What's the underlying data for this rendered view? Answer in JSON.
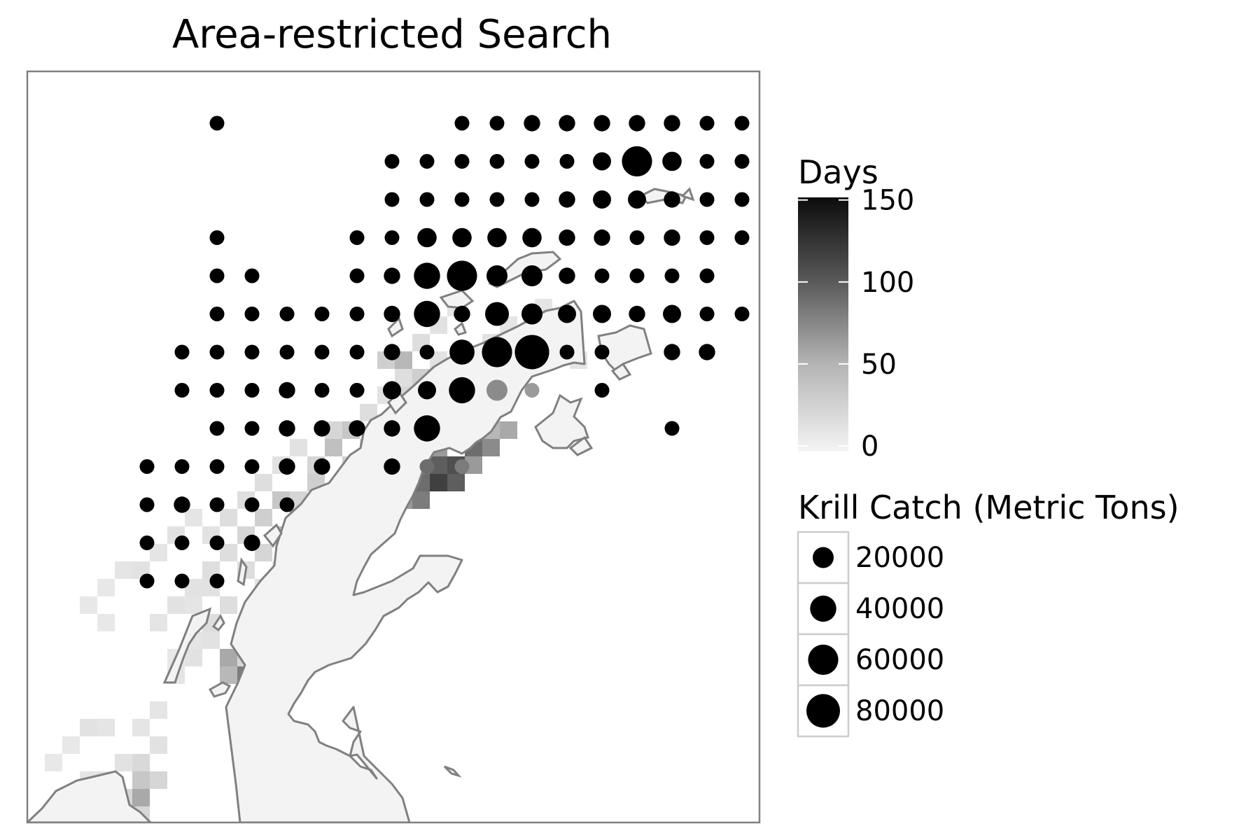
{
  "title": "Area-restricted Search",
  "legend_days": {
    "title": "Days",
    "ticks": [
      {
        "value": 0,
        "label": "0"
      },
      {
        "value": 50,
        "label": "50"
      },
      {
        "value": 100,
        "label": "100"
      },
      {
        "value": 150,
        "label": "150"
      }
    ],
    "range": [
      0,
      155
    ],
    "colors": {
      "low": "#f4f4f4",
      "high": "#0c0c0c"
    }
  },
  "legend_catch": {
    "title": "Krill Catch (Metric Tons)",
    "entries": [
      {
        "value": 20000,
        "label": "20000"
      },
      {
        "value": 40000,
        "label": "40000"
      },
      {
        "value": 60000,
        "label": "60000"
      },
      {
        "value": 80000,
        "label": "80000"
      }
    ]
  },
  "colors": {
    "land_fill": "#f3f3f3",
    "coastline": "#808080",
    "panel_border": "#808080",
    "points": "#000000",
    "legend_key_border": "#cccccc"
  },
  "chart_data": {
    "type": "scatter",
    "x_cols": 17,
    "y_rows": 13,
    "points": [
      {
        "col": 5,
        "row": 0,
        "catch": 5000
      },
      {
        "col": 12,
        "row": 0,
        "catch": 5000
      },
      {
        "col": 13,
        "row": 0,
        "catch": 5000
      },
      {
        "col": 14,
        "row": 0,
        "catch": 8000
      },
      {
        "col": 15,
        "row": 0,
        "catch": 8000
      },
      {
        "col": 16,
        "row": 0,
        "catch": 8000
      },
      {
        "col": 17,
        "row": 0,
        "catch": 8000
      },
      {
        "col": 18,
        "row": 0,
        "catch": 8000
      },
      {
        "col": 19,
        "row": 0,
        "catch": 5000
      },
      {
        "col": 20,
        "row": 0,
        "catch": 5000
      },
      {
        "col": 10,
        "row": 1,
        "catch": 5000
      },
      {
        "col": 11,
        "row": 1,
        "catch": 5000
      },
      {
        "col": 12,
        "row": 1,
        "catch": 5000
      },
      {
        "col": 13,
        "row": 1,
        "catch": 5000
      },
      {
        "col": 14,
        "row": 1,
        "catch": 5000
      },
      {
        "col": 15,
        "row": 1,
        "catch": 5000
      },
      {
        "col": 16,
        "row": 1,
        "catch": 12000
      },
      {
        "col": 17,
        "row": 1,
        "catch": 60000
      },
      {
        "col": 18,
        "row": 1,
        "catch": 15000
      },
      {
        "col": 19,
        "row": 1,
        "catch": 5000
      },
      {
        "col": 20,
        "row": 1,
        "catch": 5000
      },
      {
        "col": 10,
        "row": 2,
        "catch": 5000
      },
      {
        "col": 11,
        "row": 2,
        "catch": 5000
      },
      {
        "col": 12,
        "row": 2,
        "catch": 5000
      },
      {
        "col": 13,
        "row": 2,
        "catch": 5000
      },
      {
        "col": 14,
        "row": 2,
        "catch": 5000
      },
      {
        "col": 15,
        "row": 2,
        "catch": 8000
      },
      {
        "col": 16,
        "row": 2,
        "catch": 12000
      },
      {
        "col": 17,
        "row": 2,
        "catch": 12000
      },
      {
        "col": 18,
        "row": 2,
        "catch": 8000
      },
      {
        "col": 19,
        "row": 2,
        "catch": 5000
      },
      {
        "col": 20,
        "row": 2,
        "catch": 5000
      },
      {
        "col": 5,
        "row": 3,
        "catch": 5000
      },
      {
        "col": 9,
        "row": 3,
        "catch": 5000
      },
      {
        "col": 10,
        "row": 3,
        "catch": 5000
      },
      {
        "col": 11,
        "row": 3,
        "catch": 15000
      },
      {
        "col": 12,
        "row": 3,
        "catch": 15000
      },
      {
        "col": 13,
        "row": 3,
        "catch": 15000
      },
      {
        "col": 14,
        "row": 3,
        "catch": 15000
      },
      {
        "col": 15,
        "row": 3,
        "catch": 8000
      },
      {
        "col": 16,
        "row": 3,
        "catch": 8000
      },
      {
        "col": 17,
        "row": 3,
        "catch": 5000
      },
      {
        "col": 18,
        "row": 3,
        "catch": 8000
      },
      {
        "col": 19,
        "row": 3,
        "catch": 5000
      },
      {
        "col": 20,
        "row": 3,
        "catch": 5000
      },
      {
        "col": 5,
        "row": 4,
        "catch": 5000
      },
      {
        "col": 6,
        "row": 4,
        "catch": 5000
      },
      {
        "col": 9,
        "row": 4,
        "catch": 5000
      },
      {
        "col": 10,
        "row": 4,
        "catch": 8000
      },
      {
        "col": 11,
        "row": 4,
        "catch": 40000
      },
      {
        "col": 12,
        "row": 4,
        "catch": 60000
      },
      {
        "col": 13,
        "row": 4,
        "catch": 20000
      },
      {
        "col": 14,
        "row": 4,
        "catch": 20000
      },
      {
        "col": 15,
        "row": 4,
        "catch": 8000
      },
      {
        "col": 16,
        "row": 4,
        "catch": 5000
      },
      {
        "col": 17,
        "row": 4,
        "catch": 5000
      },
      {
        "col": 18,
        "row": 4,
        "catch": 5000
      },
      {
        "col": 19,
        "row": 4,
        "catch": 5000
      },
      {
        "col": 5,
        "row": 5,
        "catch": 5000
      },
      {
        "col": 6,
        "row": 5,
        "catch": 5000
      },
      {
        "col": 7,
        "row": 5,
        "catch": 5000
      },
      {
        "col": 8,
        "row": 5,
        "catch": 5000
      },
      {
        "col": 9,
        "row": 5,
        "catch": 5000
      },
      {
        "col": 10,
        "row": 5,
        "catch": 8000
      },
      {
        "col": 11,
        "row": 5,
        "catch": 40000
      },
      {
        "col": 12,
        "row": 5,
        "catch": 8000
      },
      {
        "col": 13,
        "row": 5,
        "catch": 30000
      },
      {
        "col": 14,
        "row": 5,
        "catch": 20000
      },
      {
        "col": 15,
        "row": 5,
        "catch": 12000
      },
      {
        "col": 16,
        "row": 5,
        "catch": 12000
      },
      {
        "col": 17,
        "row": 5,
        "catch": 8000
      },
      {
        "col": 18,
        "row": 5,
        "catch": 12000
      },
      {
        "col": 19,
        "row": 5,
        "catch": 5000
      },
      {
        "col": 20,
        "row": 5,
        "catch": 5000
      },
      {
        "col": 4,
        "row": 6,
        "catch": 5000
      },
      {
        "col": 5,
        "row": 6,
        "catch": 5000
      },
      {
        "col": 6,
        "row": 6,
        "catch": 5000
      },
      {
        "col": 7,
        "row": 6,
        "catch": 5000
      },
      {
        "col": 8,
        "row": 6,
        "catch": 5000
      },
      {
        "col": 9,
        "row": 6,
        "catch": 5000
      },
      {
        "col": 10,
        "row": 6,
        "catch": 8000
      },
      {
        "col": 11,
        "row": 6,
        "catch": 5000
      },
      {
        "col": 12,
        "row": 6,
        "catch": 35000
      },
      {
        "col": 13,
        "row": 6,
        "catch": 60000
      },
      {
        "col": 14,
        "row": 6,
        "catch": 85000
      },
      {
        "col": 15,
        "row": 6,
        "catch": 5000
      },
      {
        "col": 16,
        "row": 6,
        "catch": 5000
      },
      {
        "col": 18,
        "row": 6,
        "catch": 8000
      },
      {
        "col": 19,
        "row": 6,
        "catch": 8000
      },
      {
        "col": 4,
        "row": 7,
        "catch": 5000
      },
      {
        "col": 5,
        "row": 7,
        "catch": 5000
      },
      {
        "col": 6,
        "row": 7,
        "catch": 5000
      },
      {
        "col": 7,
        "row": 7,
        "catch": 8000
      },
      {
        "col": 8,
        "row": 7,
        "catch": 5000
      },
      {
        "col": 9,
        "row": 7,
        "catch": 5000
      },
      {
        "col": 10,
        "row": 7,
        "catch": 12000
      },
      {
        "col": 11,
        "row": 7,
        "catch": 12000
      },
      {
        "col": 12,
        "row": 7,
        "catch": 40000
      },
      {
        "col": 13,
        "row": 7,
        "catch": 20000
      },
      {
        "col": 14,
        "row": 7,
        "catch": 5000
      },
      {
        "col": 16,
        "row": 7,
        "catch": 5000
      },
      {
        "col": 5,
        "row": 8,
        "catch": 5000
      },
      {
        "col": 6,
        "row": 8,
        "catch": 5000
      },
      {
        "col": 7,
        "row": 8,
        "catch": 8000
      },
      {
        "col": 8,
        "row": 8,
        "catch": 8000
      },
      {
        "col": 9,
        "row": 8,
        "catch": 8000
      },
      {
        "col": 10,
        "row": 8,
        "catch": 8000
      },
      {
        "col": 11,
        "row": 8,
        "catch": 40000
      },
      {
        "col": 18,
        "row": 8,
        "catch": 5000
      },
      {
        "col": 3,
        "row": 9,
        "catch": 5000
      },
      {
        "col": 4,
        "row": 9,
        "catch": 5000
      },
      {
        "col": 5,
        "row": 9,
        "catch": 5000
      },
      {
        "col": 6,
        "row": 9,
        "catch": 5000
      },
      {
        "col": 7,
        "row": 9,
        "catch": 8000
      },
      {
        "col": 8,
        "row": 9,
        "catch": 8000
      },
      {
        "col": 10,
        "row": 9,
        "catch": 8000
      },
      {
        "col": 11,
        "row": 9,
        "catch": 5000
      },
      {
        "col": 12,
        "row": 9,
        "catch": 5000
      },
      {
        "col": 3,
        "row": 10,
        "catch": 5000
      },
      {
        "col": 4,
        "row": 10,
        "catch": 8000
      },
      {
        "col": 5,
        "row": 10,
        "catch": 5000
      },
      {
        "col": 6,
        "row": 10,
        "catch": 5000
      },
      {
        "col": 7,
        "row": 10,
        "catch": 5000
      },
      {
        "col": 3,
        "row": 11,
        "catch": 5000
      },
      {
        "col": 4,
        "row": 11,
        "catch": 5000
      },
      {
        "col": 5,
        "row": 11,
        "catch": 5000
      },
      {
        "col": 6,
        "row": 11,
        "catch": 8000
      },
      {
        "col": 3,
        "row": 12,
        "catch": 5000
      },
      {
        "col": 4,
        "row": 12,
        "catch": 5000
      },
      {
        "col": 5,
        "row": 12,
        "catch": 5000
      }
    ],
    "darker_points": [
      {
        "col": 11,
        "row": 9,
        "days": 90
      },
      {
        "col": 12,
        "row": 9,
        "days": 80
      },
      {
        "col": 13,
        "row": 7,
        "days": 70
      },
      {
        "col": 14,
        "row": 7,
        "days": 60
      }
    ],
    "heat_cells": [
      {
        "c": 21,
        "r": 16,
        "d": 40
      },
      {
        "c": 20,
        "r": 16,
        "d": 25
      },
      {
        "c": 22,
        "r": 17,
        "d": 25
      },
      {
        "c": 21,
        "r": 18,
        "d": 20
      },
      {
        "c": 17,
        "r": 21,
        "d": 35
      },
      {
        "c": 18,
        "r": 20,
        "d": 30
      },
      {
        "c": 16,
        "r": 22,
        "d": 20
      },
      {
        "c": 17,
        "r": 20,
        "d": 20
      },
      {
        "c": 21,
        "r": 21,
        "d": 45
      },
      {
        "c": 22,
        "r": 20,
        "d": 40
      },
      {
        "c": 23,
        "r": 20,
        "d": 30
      },
      {
        "c": 24,
        "r": 19,
        "d": 25
      },
      {
        "c": 20,
        "r": 22,
        "d": 50
      },
      {
        "c": 21,
        "r": 23,
        "d": 70
      },
      {
        "c": 22,
        "r": 23,
        "d": 90
      },
      {
        "c": 23,
        "r": 22,
        "d": 100
      },
      {
        "c": 24,
        "r": 22,
        "d": 110
      },
      {
        "c": 25,
        "r": 21,
        "d": 90
      },
      {
        "c": 26,
        "r": 21,
        "d": 70
      },
      {
        "c": 27,
        "r": 20,
        "d": 50
      },
      {
        "c": 21,
        "r": 24,
        "d": 60
      },
      {
        "c": 22,
        "r": 24,
        "d": 80
      },
      {
        "c": 23,
        "r": 23,
        "d": 120
      },
      {
        "c": 24,
        "r": 23,
        "d": 100
      },
      {
        "c": 19,
        "r": 23,
        "d": 40
      },
      {
        "c": 18,
        "r": 24,
        "d": 50
      },
      {
        "c": 17,
        "r": 24,
        "d": 60
      },
      {
        "c": 16,
        "r": 25,
        "d": 90
      },
      {
        "c": 15,
        "r": 25,
        "d": 70
      },
      {
        "c": 14,
        "r": 26,
        "d": 40
      },
      {
        "c": 15,
        "r": 26,
        "d": 50
      },
      {
        "c": 17,
        "r": 25,
        "d": 45
      },
      {
        "c": 13,
        "r": 25,
        "d": 25
      },
      {
        "c": 12,
        "r": 26,
        "d": 20
      },
      {
        "c": 13,
        "r": 27,
        "d": 20
      },
      {
        "c": 14,
        "r": 24,
        "d": 30
      },
      {
        "c": 15,
        "r": 24,
        "d": 20
      },
      {
        "c": 16,
        "r": 23,
        "d": 25
      },
      {
        "c": 11,
        "r": 27,
        "d": 15
      },
      {
        "c": 12,
        "r": 28,
        "d": 15
      },
      {
        "c": 10,
        "r": 28,
        "d": 15
      },
      {
        "c": 9,
        "r": 29,
        "d": 12
      },
      {
        "c": 8,
        "r": 30,
        "d": 12
      },
      {
        "c": 7,
        "r": 31,
        "d": 10
      },
      {
        "c": 12,
        "r": 32,
        "d": 30
      },
      {
        "c": 12,
        "r": 33,
        "d": 20
      },
      {
        "c": 13,
        "r": 31,
        "d": 20
      },
      {
        "c": 11,
        "r": 33,
        "d": 50
      },
      {
        "c": 12,
        "r": 34,
        "d": 80
      },
      {
        "c": 11,
        "r": 34,
        "d": 40
      },
      {
        "c": 10,
        "r": 32,
        "d": 12
      },
      {
        "c": 9,
        "r": 32,
        "d": 10
      },
      {
        "c": 5,
        "r": 39,
        "d": 12
      },
      {
        "c": 6,
        "r": 39,
        "d": 18
      },
      {
        "c": 7,
        "r": 38,
        "d": 12
      },
      {
        "c": 6,
        "r": 40,
        "d": 30
      },
      {
        "c": 6,
        "r": 41,
        "d": 50
      },
      {
        "c": 7,
        "r": 40,
        "d": 20
      },
      {
        "c": 5,
        "r": 41,
        "d": 20
      },
      {
        "c": 4,
        "r": 40,
        "d": 12
      },
      {
        "c": 3,
        "r": 40,
        "d": 10
      },
      {
        "c": 2,
        "r": 41,
        "d": 12
      },
      {
        "c": 4,
        "r": 42,
        "d": 15
      },
      {
        "c": 5,
        "r": 43,
        "d": 15
      },
      {
        "c": 6,
        "r": 42,
        "d": 20
      },
      {
        "c": 3,
        "r": 37,
        "d": 12
      },
      {
        "c": 4,
        "r": 37,
        "d": 10
      },
      {
        "c": 6,
        "r": 37,
        "d": 10
      },
      {
        "c": 2,
        "r": 38,
        "d": 8
      },
      {
        "c": 1,
        "r": 39,
        "d": 8
      },
      {
        "c": 7,
        "r": 36,
        "d": 10
      },
      {
        "c": 8,
        "r": 34,
        "d": 10
      },
      {
        "c": 9,
        "r": 33,
        "d": 12
      },
      {
        "c": 10,
        "r": 31,
        "d": 15
      },
      {
        "c": 11,
        "r": 30,
        "d": 15
      },
      {
        "c": 8,
        "r": 33,
        "d": 8
      },
      {
        "c": 5,
        "r": 28,
        "d": 10
      },
      {
        "c": 6,
        "r": 28,
        "d": 12
      },
      {
        "c": 7,
        "r": 27,
        "d": 10
      },
      {
        "c": 4,
        "r": 29,
        "d": 8
      },
      {
        "c": 3,
        "r": 30,
        "d": 8
      },
      {
        "c": 4,
        "r": 31,
        "d": 8
      },
      {
        "c": 8,
        "r": 26,
        "d": 12
      },
      {
        "c": 9,
        "r": 25,
        "d": 10
      },
      {
        "c": 10,
        "r": 26,
        "d": 12
      },
      {
        "c": 11,
        "r": 25,
        "d": 15
      },
      {
        "c": 12,
        "r": 24,
        "d": 15
      },
      {
        "c": 13,
        "r": 23,
        "d": 15
      },
      {
        "c": 14,
        "r": 22,
        "d": 12
      },
      {
        "c": 15,
        "r": 21,
        "d": 12
      },
      {
        "c": 13,
        "r": 29,
        "d": 12
      },
      {
        "c": 14,
        "r": 28,
        "d": 10
      },
      {
        "c": 15,
        "r": 27,
        "d": 15
      },
      {
        "c": 10,
        "r": 29,
        "d": 12
      },
      {
        "c": 9,
        "r": 30,
        "d": 10
      },
      {
        "c": 19,
        "r": 21,
        "d": 20
      },
      {
        "c": 20,
        "r": 20,
        "d": 15
      },
      {
        "c": 19,
        "r": 19,
        "d": 15
      },
      {
        "c": 20,
        "r": 18,
        "d": 12
      },
      {
        "c": 21,
        "r": 17,
        "d": 15
      },
      {
        "c": 22,
        "r": 15,
        "d": 15
      },
      {
        "c": 23,
        "r": 16,
        "d": 12
      },
      {
        "c": 24,
        "r": 17,
        "d": 12
      },
      {
        "c": 25,
        "r": 18,
        "d": 15
      },
      {
        "c": 26,
        "r": 19,
        "d": 15
      },
      {
        "c": 25,
        "r": 20,
        "d": 25
      },
      {
        "c": 26,
        "r": 15,
        "d": 12
      },
      {
        "c": 27,
        "r": 14,
        "d": 10
      },
      {
        "c": 28,
        "r": 16,
        "d": 12
      },
      {
        "c": 27,
        "r": 17,
        "d": 10
      },
      {
        "c": 29,
        "r": 15,
        "d": 10
      },
      {
        "c": 30,
        "r": 14,
        "d": 12
      },
      {
        "c": 29,
        "r": 13,
        "d": 10
      },
      {
        "c": 31,
        "r": 16,
        "d": 10
      },
      {
        "c": 23,
        "r": 14,
        "d": 12
      },
      {
        "c": 24,
        "r": 13,
        "d": 10
      },
      {
        "c": 18,
        "r": 22,
        "d": 25
      },
      {
        "c": 19,
        "r": 22,
        "d": 35
      },
      {
        "c": 20,
        "r": 21,
        "d": 25
      },
      {
        "c": 23,
        "r": 21,
        "d": 60
      },
      {
        "c": 24,
        "r": 20,
        "d": 40
      },
      {
        "c": 22,
        "r": 22,
        "d": 70
      },
      {
        "c": 25,
        "r": 22,
        "d": 60
      },
      {
        "c": 26,
        "r": 20,
        "d": 40
      }
    ]
  }
}
